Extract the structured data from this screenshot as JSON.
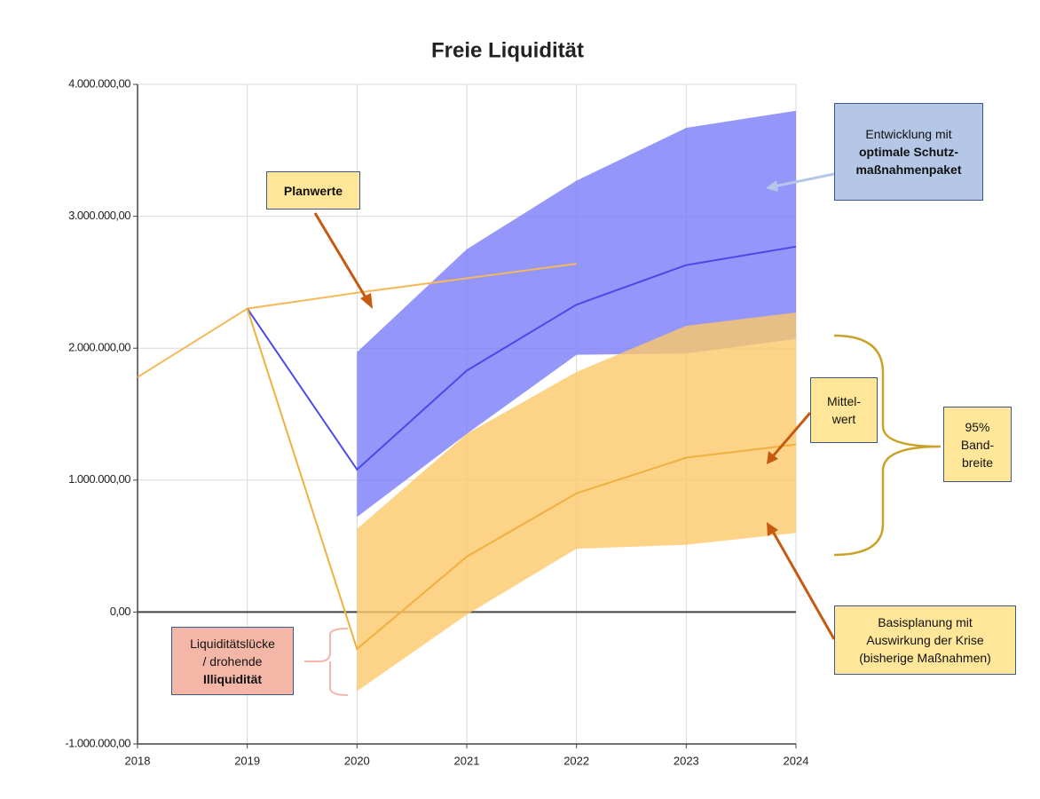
{
  "chart_data": {
    "type": "band-line",
    "title": "Freie Liquidität",
    "x": [
      2018,
      2019,
      2020,
      2021,
      2022,
      2023,
      2024
    ],
    "xlim": [
      2018,
      2024
    ],
    "xticks": [
      2018,
      2019,
      2020,
      2021,
      2022,
      2023,
      2024
    ],
    "ylim": [
      -1000000,
      4000000
    ],
    "yticks": [
      {
        "value": -1000000,
        "label": "-1.000.000,00"
      },
      {
        "value": 0,
        "label": "0,00"
      },
      {
        "value": 1000000,
        "label": "1.000.000,00"
      },
      {
        "value": 2000000,
        "label": "2.000.000,00"
      },
      {
        "value": 3000000,
        "label": "3.000.000,00"
      },
      {
        "value": 4000000,
        "label": "4.000.000,00"
      }
    ],
    "grid": true,
    "bands": [
      {
        "color": "#7b7cf7",
        "lower": [
          null,
          null,
          720000,
          1350000,
          1950000,
          1960000,
          2070000
        ],
        "upper": [
          null,
          null,
          1970000,
          2750000,
          3270000,
          3670000,
          3800000
        ]
      },
      {
        "color": "#fdc86a",
        "lower": [
          null,
          null,
          -600000,
          -20000,
          480000,
          510000,
          600000
        ],
        "upper": [
          null,
          null,
          630000,
          1350000,
          1820000,
          2170000,
          2270000
        ]
      }
    ],
    "series": [
      {
        "color": "#f5b95a",
        "values": [
          1780000,
          2300000,
          2420000,
          2530000,
          2640000,
          null,
          null
        ]
      },
      {
        "color": "#4a4ae8",
        "values": [
          null,
          2300000,
          1080000,
          1830000,
          2330000,
          2630000,
          2770000
        ]
      },
      {
        "color": "#f0b040",
        "values": [
          null,
          2300000,
          -280000,
          420000,
          900000,
          1170000,
          1270000
        ]
      }
    ],
    "annotations": [
      {
        "lines": [
          "Planwerte"
        ]
      },
      {
        "lines": [
          "Entwicklung mit",
          "optimale Schutz-",
          "maßnahmenpaket"
        ]
      },
      {
        "lines": [
          "Mittel-",
          "wert"
        ]
      },
      {
        "lines": [
          "95%",
          "Band-",
          "breite"
        ]
      },
      {
        "lines": [
          "Basisplanung mit",
          "Auswirkung der Krise",
          "(bisherige Maßnahmen)"
        ]
      },
      {
        "lines": [
          "Liquiditätslücke",
          "/ drohende",
          "Illiquidität"
        ]
      }
    ]
  }
}
